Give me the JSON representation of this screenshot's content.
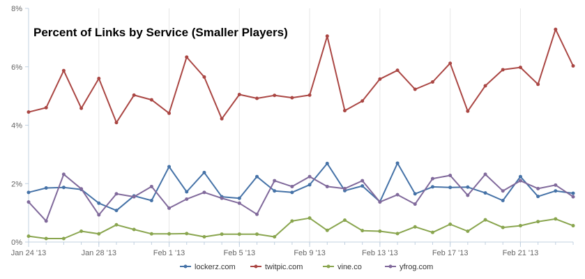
{
  "chart_data": {
    "type": "line",
    "title": "Percent of Links by Service (Smaller Players)",
    "xlabel": "",
    "ylabel": "",
    "x": [
      "Jan 24 '13",
      "Jan 25 '13",
      "Jan 26 '13",
      "Jan 27 '13",
      "Jan 28 '13",
      "Jan 29 '13",
      "Jan 30 '13",
      "Jan 31 '13",
      "Feb 1 '13",
      "Feb 2 '13",
      "Feb 3 '13",
      "Feb 4 '13",
      "Feb 5 '13",
      "Feb 6 '13",
      "Feb 7 '13",
      "Feb 8 '13",
      "Feb 9 '13",
      "Feb 10 '13",
      "Feb 11 '13",
      "Feb 12 '13",
      "Feb 13 '13",
      "Feb 14 '13",
      "Feb 15 '13",
      "Feb 16 '13",
      "Feb 17 '13",
      "Feb 18 '13",
      "Feb 19 '13",
      "Feb 20 '13",
      "Feb 21 '13",
      "Feb 22 '13",
      "Feb 23 '13",
      "Feb 24 '13"
    ],
    "x_ticks": [
      "Jan 24 '13",
      "Jan 28 '13",
      "Feb 1 '13",
      "Feb 5 '13",
      "Feb 9 '13",
      "Feb 13 '13",
      "Feb 17 '13",
      "Feb 21 '13"
    ],
    "y_ticks": [
      "0%",
      "2%",
      "4%",
      "6%",
      "8%"
    ],
    "ylim": [
      0,
      8
    ],
    "grid": "vertical lines at labelled ticks",
    "legend_position": "bottom-center",
    "series": [
      {
        "name": "lockerz.com",
        "color": "#4572a7",
        "values": [
          1.7,
          1.85,
          1.87,
          1.8,
          1.33,
          1.08,
          1.58,
          1.42,
          2.58,
          1.72,
          2.38,
          1.55,
          1.5,
          2.24,
          1.75,
          1.7,
          1.96,
          2.69,
          1.76,
          1.92,
          1.38,
          2.7,
          1.65,
          1.89,
          1.87,
          1.88,
          1.68,
          1.42,
          2.24,
          1.56,
          1.75,
          1.67
        ]
      },
      {
        "name": "twitpic.com",
        "color": "#aa4643",
        "values": [
          4.45,
          4.6,
          5.87,
          4.58,
          5.6,
          4.09,
          5.03,
          4.87,
          4.41,
          6.33,
          5.65,
          4.22,
          5.05,
          4.92,
          5.02,
          4.94,
          5.03,
          7.05,
          4.5,
          4.83,
          5.58,
          5.88,
          5.23,
          5.48,
          6.12,
          4.48,
          5.35,
          5.9,
          5.98,
          5.4,
          7.28,
          6.03
        ]
      },
      {
        "name": "vine.co",
        "color": "#89a54e",
        "values": [
          0.2,
          0.12,
          0.12,
          0.37,
          0.28,
          0.59,
          0.43,
          0.28,
          0.28,
          0.29,
          0.18,
          0.27,
          0.27,
          0.27,
          0.18,
          0.72,
          0.82,
          0.4,
          0.75,
          0.39,
          0.37,
          0.29,
          0.52,
          0.33,
          0.61,
          0.37,
          0.76,
          0.5,
          0.56,
          0.7,
          0.79,
          0.56
        ]
      },
      {
        "name": "yfrog.com",
        "color": "#80699b",
        "values": [
          1.37,
          0.72,
          2.32,
          1.82,
          0.93,
          1.65,
          1.55,
          1.9,
          1.16,
          1.47,
          1.7,
          1.5,
          1.33,
          0.95,
          2.1,
          1.9,
          2.24,
          1.9,
          1.83,
          2.1,
          1.37,
          1.62,
          1.3,
          2.17,
          2.28,
          1.6,
          2.32,
          1.75,
          2.1,
          1.83,
          1.95,
          1.55
        ]
      }
    ]
  }
}
